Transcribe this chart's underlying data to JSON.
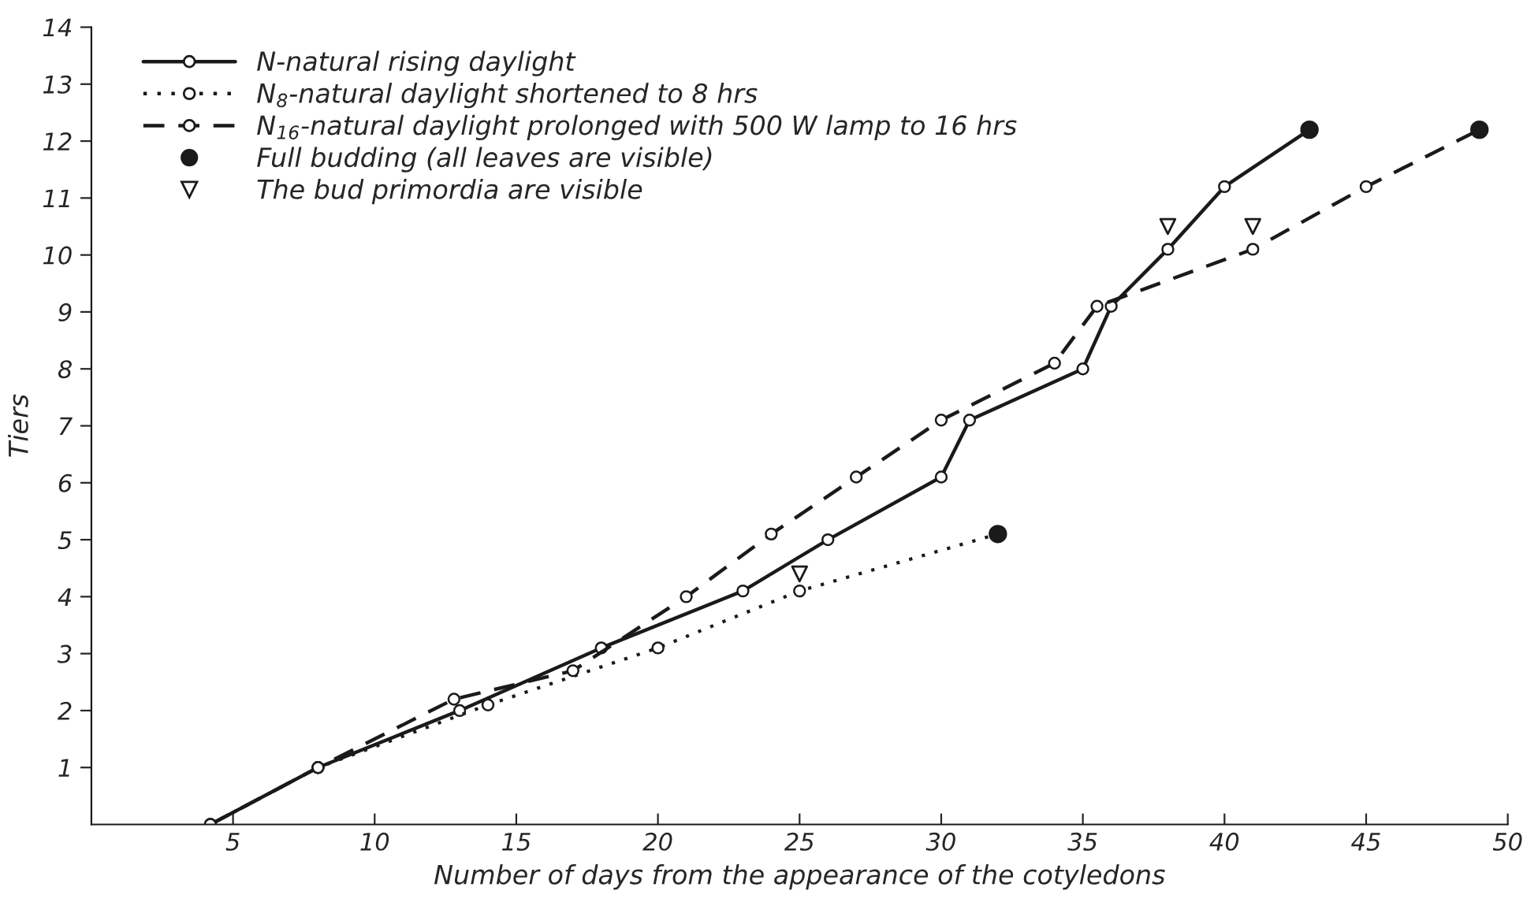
{
  "chart_data": {
    "type": "line",
    "xlabel": "Number of days from the appearance of the cotyledons",
    "ylabel": "Tiers",
    "xlim": [
      0,
      50
    ],
    "ylim": [
      0,
      14
    ],
    "xticks": [
      5,
      10,
      15,
      20,
      25,
      30,
      35,
      40,
      45,
      50
    ],
    "yticks": [
      1,
      2,
      3,
      4,
      5,
      6,
      7,
      8,
      9,
      10,
      11,
      12,
      13,
      14
    ],
    "grid": false,
    "legend": "top left",
    "series": [
      {
        "name": "N-natural rising daylight",
        "color": "#1a1a1a",
        "line_style": "solid",
        "marker": "circle",
        "x": [
          4.2,
          8,
          13,
          18,
          23,
          26,
          30,
          31,
          35,
          36,
          38,
          40,
          43
        ],
        "values": [
          0,
          1,
          2,
          3.1,
          4.1,
          5,
          6.1,
          7.1,
          8,
          9.1,
          10.1,
          11.2,
          12.2
        ]
      },
      {
        "name": "N$_{8}$-natural daylight shortened to 8 hrs",
        "color": "#1a1a1a",
        "line_style": "dotted",
        "marker": "circle",
        "x": [
          4.2,
          8,
          14,
          20,
          25,
          32
        ],
        "values": [
          0,
          1,
          2.1,
          3.1,
          4.1,
          5.1
        ]
      },
      {
        "name": "N$_{16}$-natural daylight prolonged with 500 W lamp to 16 hrs",
        "color": "#1a1a1a",
        "line_style": "dashed",
        "marker": "circle",
        "x": [
          4.2,
          8,
          12.8,
          17,
          21,
          24,
          27,
          30,
          34,
          35.5,
          41,
          45,
          49
        ],
        "values": [
          0,
          1,
          2.2,
          2.7,
          4,
          5.1,
          6.1,
          7.1,
          8.1,
          9.1,
          10.1,
          11.2,
          12.2
        ]
      },
      {
        "name": "Full budding (all leaves are visible)",
        "type": "scatter",
        "color": "#1a1a1a",
        "marker": "circle",
        "x": [
          32,
          43,
          49
        ],
        "values": [
          5.1,
          12.2,
          12.2
        ]
      },
      {
        "name": "The bud primordia are visible",
        "type": "scatter",
        "color": "#1a1a1a",
        "marker": "triangle",
        "x": [
          25,
          38,
          41
        ],
        "values": [
          4.4,
          10.5,
          10.5
        ]
      }
    ]
  }
}
